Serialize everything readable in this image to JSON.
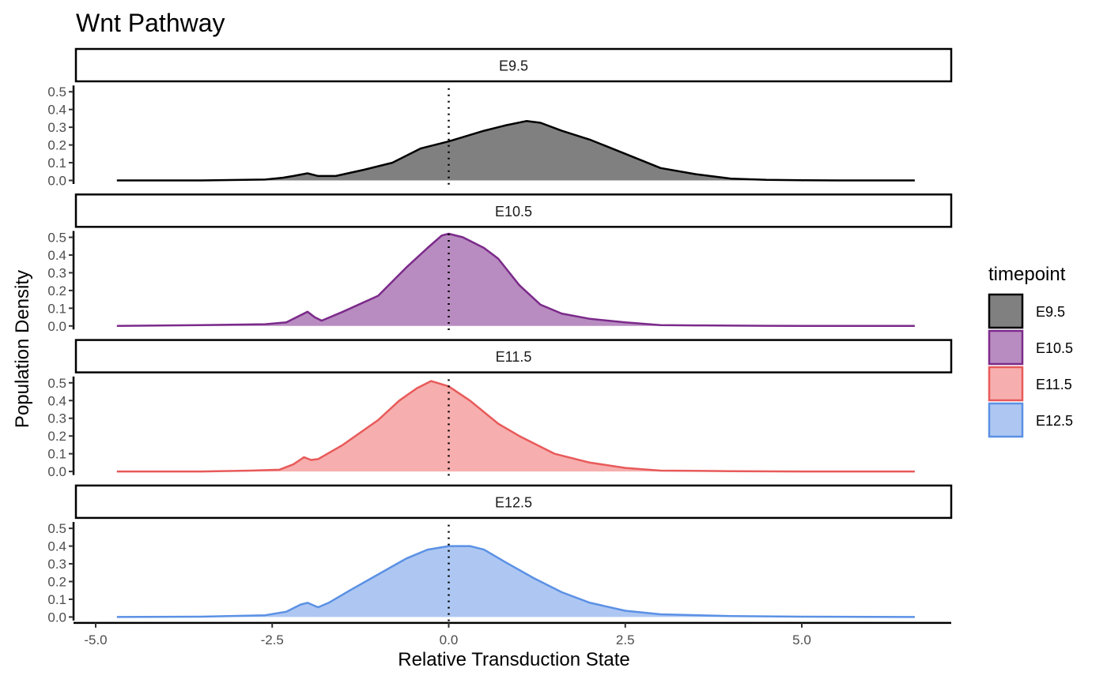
{
  "chart_data": {
    "type": "area",
    "title": "Wnt Pathway",
    "xlabel": "Relative Transduction State",
    "ylabel": "Population Density",
    "xlim": [
      -5.25,
      7.1
    ],
    "ylim": [
      -0.02,
      0.55
    ],
    "x_ticks": [
      -5.0,
      -2.5,
      0.0,
      2.5,
      5.0
    ],
    "x_tick_labels": [
      "-5.0",
      "-2.5",
      "0.0",
      "2.5",
      "5.0"
    ],
    "y_ticks": [
      0.0,
      0.1,
      0.2,
      0.3,
      0.4,
      0.5
    ],
    "y_tick_labels": [
      "0.0",
      "0.1",
      "0.2",
      "0.3",
      "0.4",
      "0.5"
    ],
    "vline_x": 0.0,
    "vline_style": "dotted",
    "grid": false,
    "legend": {
      "title": "timepoint",
      "placement": "right",
      "entries": [
        "E9.5",
        "E10.5",
        "E11.5",
        "E12.5"
      ]
    },
    "series": [
      {
        "name": "E9.5",
        "line_color": "#000000",
        "fill_color": "#808080",
        "x": [
          -4.7,
          -3.5,
          -2.6,
          -2.35,
          -2.2,
          -2.0,
          -1.85,
          -1.6,
          -1.2,
          -0.8,
          -0.4,
          0.0,
          0.5,
          0.8,
          1.1,
          1.3,
          1.6,
          2.0,
          2.5,
          3.0,
          3.5,
          4.0,
          4.5,
          5.0,
          5.5,
          6.0,
          6.6
        ],
        "y": [
          0.0,
          0.0,
          0.005,
          0.015,
          0.025,
          0.04,
          0.025,
          0.025,
          0.06,
          0.1,
          0.18,
          0.22,
          0.28,
          0.31,
          0.335,
          0.325,
          0.28,
          0.23,
          0.15,
          0.07,
          0.035,
          0.01,
          0.003,
          0.001,
          0.0,
          0.0,
          0.0
        ]
      },
      {
        "name": "E10.5",
        "line_color": "#7B2A8A",
        "fill_color": "#B88CC0",
        "x": [
          -4.7,
          -3.5,
          -2.6,
          -2.3,
          -2.1,
          -2.0,
          -1.9,
          -1.8,
          -1.5,
          -1.0,
          -0.6,
          -0.3,
          -0.1,
          0.0,
          0.2,
          0.5,
          0.7,
          1.0,
          1.3,
          1.6,
          2.0,
          2.5,
          3.0,
          3.5,
          4.5,
          5.5,
          6.6
        ],
        "y": [
          0.0,
          0.005,
          0.01,
          0.02,
          0.06,
          0.08,
          0.05,
          0.03,
          0.08,
          0.17,
          0.33,
          0.44,
          0.51,
          0.52,
          0.5,
          0.44,
          0.38,
          0.23,
          0.12,
          0.07,
          0.04,
          0.02,
          0.005,
          0.003,
          0.001,
          0.0,
          0.0
        ]
      },
      {
        "name": "E11.5",
        "line_color": "#E85A5A",
        "fill_color": "#F7AEAE",
        "x": [
          -4.7,
          -3.5,
          -2.8,
          -2.4,
          -2.2,
          -2.05,
          -1.95,
          -1.85,
          -1.5,
          -1.0,
          -0.7,
          -0.45,
          -0.25,
          0.0,
          0.3,
          0.7,
          1.0,
          1.5,
          2.0,
          2.5,
          3.0,
          4.0,
          5.0,
          6.6
        ],
        "y": [
          0.0,
          0.0,
          0.005,
          0.01,
          0.04,
          0.08,
          0.065,
          0.07,
          0.15,
          0.29,
          0.4,
          0.47,
          0.51,
          0.48,
          0.4,
          0.27,
          0.2,
          0.1,
          0.05,
          0.02,
          0.005,
          0.002,
          0.0,
          0.0
        ]
      },
      {
        "name": "E12.5",
        "line_color": "#5B91E5",
        "fill_color": "#AEC7F2",
        "x": [
          -4.7,
          -3.5,
          -2.6,
          -2.3,
          -2.1,
          -2.0,
          -1.85,
          -1.7,
          -1.4,
          -1.0,
          -0.6,
          -0.3,
          0.0,
          0.3,
          0.5,
          0.8,
          1.2,
          1.6,
          2.0,
          2.5,
          3.0,
          4.0,
          5.0,
          6.6
        ],
        "y": [
          0.0,
          0.002,
          0.01,
          0.03,
          0.07,
          0.08,
          0.055,
          0.08,
          0.15,
          0.24,
          0.33,
          0.38,
          0.4,
          0.4,
          0.38,
          0.31,
          0.22,
          0.14,
          0.08,
          0.035,
          0.015,
          0.005,
          0.002,
          0.0
        ]
      }
    ]
  }
}
